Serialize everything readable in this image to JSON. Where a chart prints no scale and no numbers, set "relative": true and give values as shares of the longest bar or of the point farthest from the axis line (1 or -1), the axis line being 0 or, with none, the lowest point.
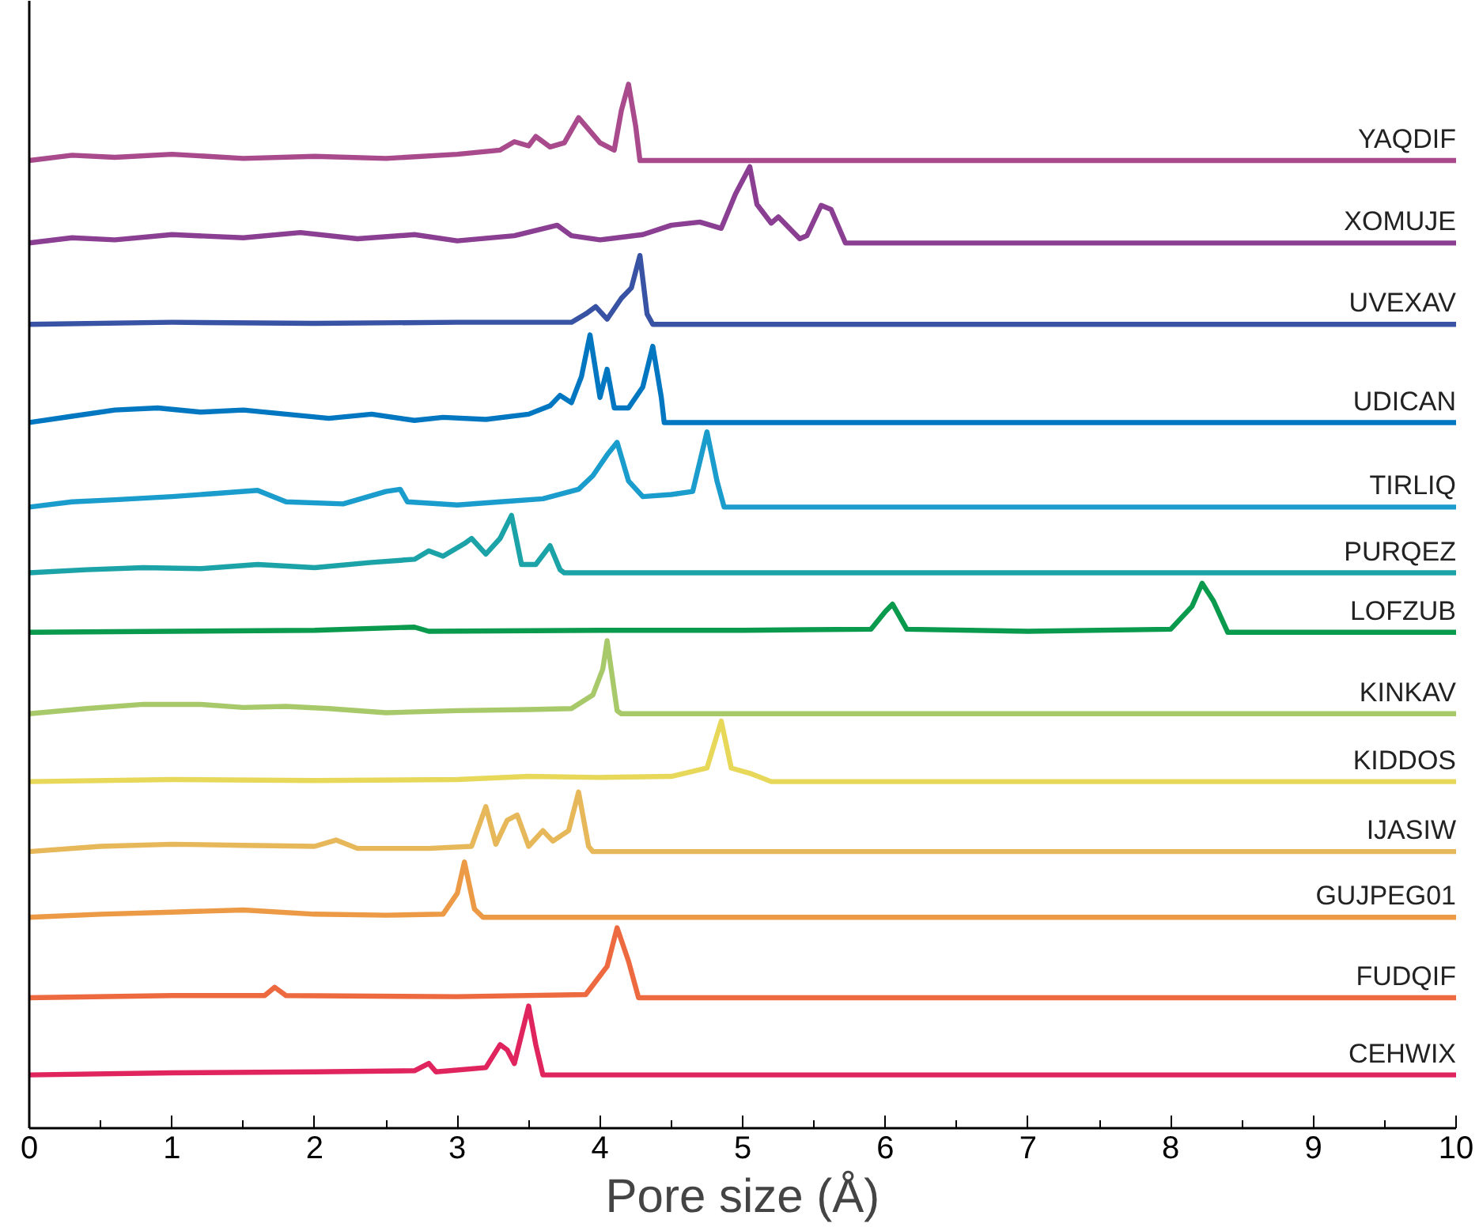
{
  "chart_data": {
    "type": "line",
    "relative": true,
    "xlabel": "Pore size (Å)",
    "xlim": [
      0,
      10
    ],
    "xticks": [
      0,
      1,
      2,
      3,
      4,
      5,
      6,
      7,
      8,
      9,
      10
    ],
    "legend": false,
    "grid": false,
    "series": [
      {
        "name": "YAQDIF",
        "color": "#a84a8c",
        "x": [
          0,
          0.3,
          0.6,
          1.0,
          1.5,
          2.0,
          2.5,
          3.0,
          3.3,
          3.4,
          3.5,
          3.55,
          3.65,
          3.75,
          3.85,
          3.9,
          4.0,
          4.1,
          4.15,
          4.2,
          4.25,
          4.28,
          10
        ],
        "values": [
          0.927,
          0.932,
          0.93,
          0.933,
          0.929,
          0.931,
          0.929,
          0.933,
          0.937,
          0.945,
          0.941,
          0.95,
          0.94,
          0.944,
          0.968,
          0.96,
          0.944,
          0.937,
          0.975,
          1.0,
          0.96,
          0.927,
          0.927
        ]
      },
      {
        "name": "XOMUJE",
        "color": "#8b3f92",
        "x": [
          0,
          0.3,
          0.6,
          1.0,
          1.5,
          1.9,
          2.3,
          2.7,
          3.0,
          3.4,
          3.7,
          3.8,
          4.0,
          4.3,
          4.5,
          4.7,
          4.85,
          4.95,
          5.05,
          5.1,
          5.2,
          5.25,
          5.4,
          5.45,
          5.55,
          5.62,
          5.72,
          10
        ],
        "values": [
          0.848,
          0.853,
          0.851,
          0.856,
          0.853,
          0.858,
          0.852,
          0.856,
          0.85,
          0.855,
          0.865,
          0.855,
          0.851,
          0.856,
          0.865,
          0.868,
          0.862,
          0.895,
          0.921,
          0.885,
          0.867,
          0.873,
          0.852,
          0.855,
          0.884,
          0.88,
          0.848,
          0.848
        ]
      },
      {
        "name": "UVEXAV",
        "color": "#3953a4",
        "x": [
          0,
          1,
          2,
          3,
          3.8,
          3.9,
          3.97,
          4.05,
          4.15,
          4.22,
          4.28,
          4.33,
          4.37,
          10
        ],
        "values": [
          0.77,
          0.772,
          0.771,
          0.772,
          0.772,
          0.78,
          0.787,
          0.775,
          0.795,
          0.805,
          0.836,
          0.78,
          0.77,
          0.77
        ]
      },
      {
        "name": "UDICAN",
        "color": "#0077c0",
        "x": [
          0,
          0.3,
          0.6,
          0.9,
          1.2,
          1.5,
          1.8,
          2.1,
          2.4,
          2.7,
          2.9,
          3.2,
          3.5,
          3.65,
          3.72,
          3.8,
          3.87,
          3.93,
          4.0,
          4.05,
          4.1,
          4.2,
          4.3,
          4.37,
          4.43,
          4.45,
          10
        ],
        "values": [
          0.676,
          0.682,
          0.688,
          0.69,
          0.686,
          0.688,
          0.684,
          0.68,
          0.684,
          0.678,
          0.681,
          0.679,
          0.684,
          0.692,
          0.702,
          0.695,
          0.72,
          0.76,
          0.7,
          0.727,
          0.69,
          0.69,
          0.71,
          0.749,
          0.7,
          0.676,
          0.676
        ]
      },
      {
        "name": "TIRLIQ",
        "color": "#1a9ccc",
        "x": [
          0,
          0.3,
          0.6,
          1.0,
          1.3,
          1.6,
          1.8,
          2.2,
          2.5,
          2.6,
          2.65,
          3.0,
          3.3,
          3.6,
          3.85,
          3.95,
          4.05,
          4.12,
          4.2,
          4.3,
          4.5,
          4.65,
          4.75,
          4.82,
          4.87,
          10
        ],
        "values": [
          0.595,
          0.6,
          0.602,
          0.605,
          0.608,
          0.611,
          0.6,
          0.598,
          0.61,
          0.612,
          0.6,
          0.597,
          0.6,
          0.603,
          0.612,
          0.625,
          0.645,
          0.657,
          0.62,
          0.605,
          0.607,
          0.61,
          0.667,
          0.62,
          0.595,
          0.595
        ]
      },
      {
        "name": "PURQEZ",
        "color": "#1ba3a8",
        "x": [
          0,
          0.4,
          0.8,
          1.2,
          1.6,
          2.0,
          2.4,
          2.7,
          2.8,
          2.9,
          3.05,
          3.1,
          3.2,
          3.3,
          3.38,
          3.45,
          3.55,
          3.65,
          3.72,
          3.75,
          10
        ],
        "values": [
          0.532,
          0.535,
          0.537,
          0.536,
          0.54,
          0.537,
          0.542,
          0.545,
          0.553,
          0.548,
          0.56,
          0.565,
          0.55,
          0.565,
          0.587,
          0.54,
          0.54,
          0.558,
          0.535,
          0.532,
          0.532
        ]
      },
      {
        "name": "LOFZUB",
        "color": "#0a9a4e",
        "x": [
          0,
          1,
          2,
          2.7,
          2.8,
          4,
          5,
          5.9,
          6.0,
          6.05,
          6.15,
          7,
          8,
          8.15,
          8.22,
          8.3,
          8.4,
          10
        ],
        "values": [
          0.475,
          0.476,
          0.477,
          0.48,
          0.476,
          0.477,
          0.477,
          0.478,
          0.495,
          0.502,
          0.478,
          0.476,
          0.478,
          0.5,
          0.522,
          0.505,
          0.475,
          0.475
        ]
      },
      {
        "name": "KINKAV",
        "color": "#a8c96a",
        "x": [
          0,
          0.4,
          0.8,
          1.2,
          1.5,
          1.8,
          2.1,
          2.5,
          3.0,
          3.5,
          3.8,
          3.95,
          4.02,
          4.05,
          4.12,
          4.15,
          10
        ],
        "values": [
          0.397,
          0.402,
          0.406,
          0.406,
          0.403,
          0.404,
          0.402,
          0.398,
          0.4,
          0.401,
          0.402,
          0.415,
          0.44,
          0.467,
          0.4,
          0.397,
          0.397
        ]
      },
      {
        "name": "KIDDOS",
        "color": "#e8d85a",
        "x": [
          0,
          1,
          2,
          3,
          3.5,
          4,
          4.5,
          4.75,
          4.85,
          4.92,
          5.05,
          5.2,
          10
        ],
        "values": [
          0.332,
          0.334,
          0.333,
          0.334,
          0.337,
          0.336,
          0.337,
          0.345,
          0.39,
          0.345,
          0.34,
          0.332,
          0.332
        ]
      },
      {
        "name": "IJASIW",
        "color": "#e7b85a",
        "x": [
          0,
          0.5,
          1,
          1.5,
          2,
          2.15,
          2.3,
          2.8,
          3.1,
          3.2,
          3.27,
          3.35,
          3.42,
          3.5,
          3.6,
          3.67,
          3.78,
          3.85,
          3.92,
          3.95,
          10
        ],
        "values": [
          0.265,
          0.27,
          0.272,
          0.271,
          0.27,
          0.276,
          0.268,
          0.268,
          0.27,
          0.308,
          0.272,
          0.295,
          0.3,
          0.27,
          0.285,
          0.275,
          0.285,
          0.322,
          0.27,
          0.265,
          0.265
        ]
      },
      {
        "name": "GUJPEG01",
        "color": "#ec9a45",
        "x": [
          0,
          0.5,
          1,
          1.5,
          2,
          2.5,
          2.9,
          3.0,
          3.05,
          3.12,
          3.18,
          10
        ],
        "values": [
          0.202,
          0.205,
          0.207,
          0.209,
          0.205,
          0.204,
          0.205,
          0.225,
          0.255,
          0.21,
          0.202,
          0.202
        ]
      },
      {
        "name": "FUDQIF",
        "color": "#ed6a40",
        "x": [
          0,
          1,
          1.65,
          1.72,
          1.8,
          3,
          3.9,
          4.05,
          4.12,
          4.2,
          4.27,
          10
        ],
        "values": [
          0.125,
          0.127,
          0.127,
          0.135,
          0.127,
          0.126,
          0.128,
          0.155,
          0.192,
          0.16,
          0.125,
          0.125
        ]
      },
      {
        "name": "CEHWIX",
        "color": "#e0245e",
        "x": [
          0,
          1,
          2,
          2.7,
          2.8,
          2.85,
          3.2,
          3.3,
          3.35,
          3.4,
          3.5,
          3.55,
          3.6,
          10
        ],
        "values": [
          0.051,
          0.053,
          0.054,
          0.055,
          0.062,
          0.054,
          0.058,
          0.08,
          0.075,
          0.062,
          0.117,
          0.08,
          0.051,
          0.051
        ]
      }
    ]
  }
}
